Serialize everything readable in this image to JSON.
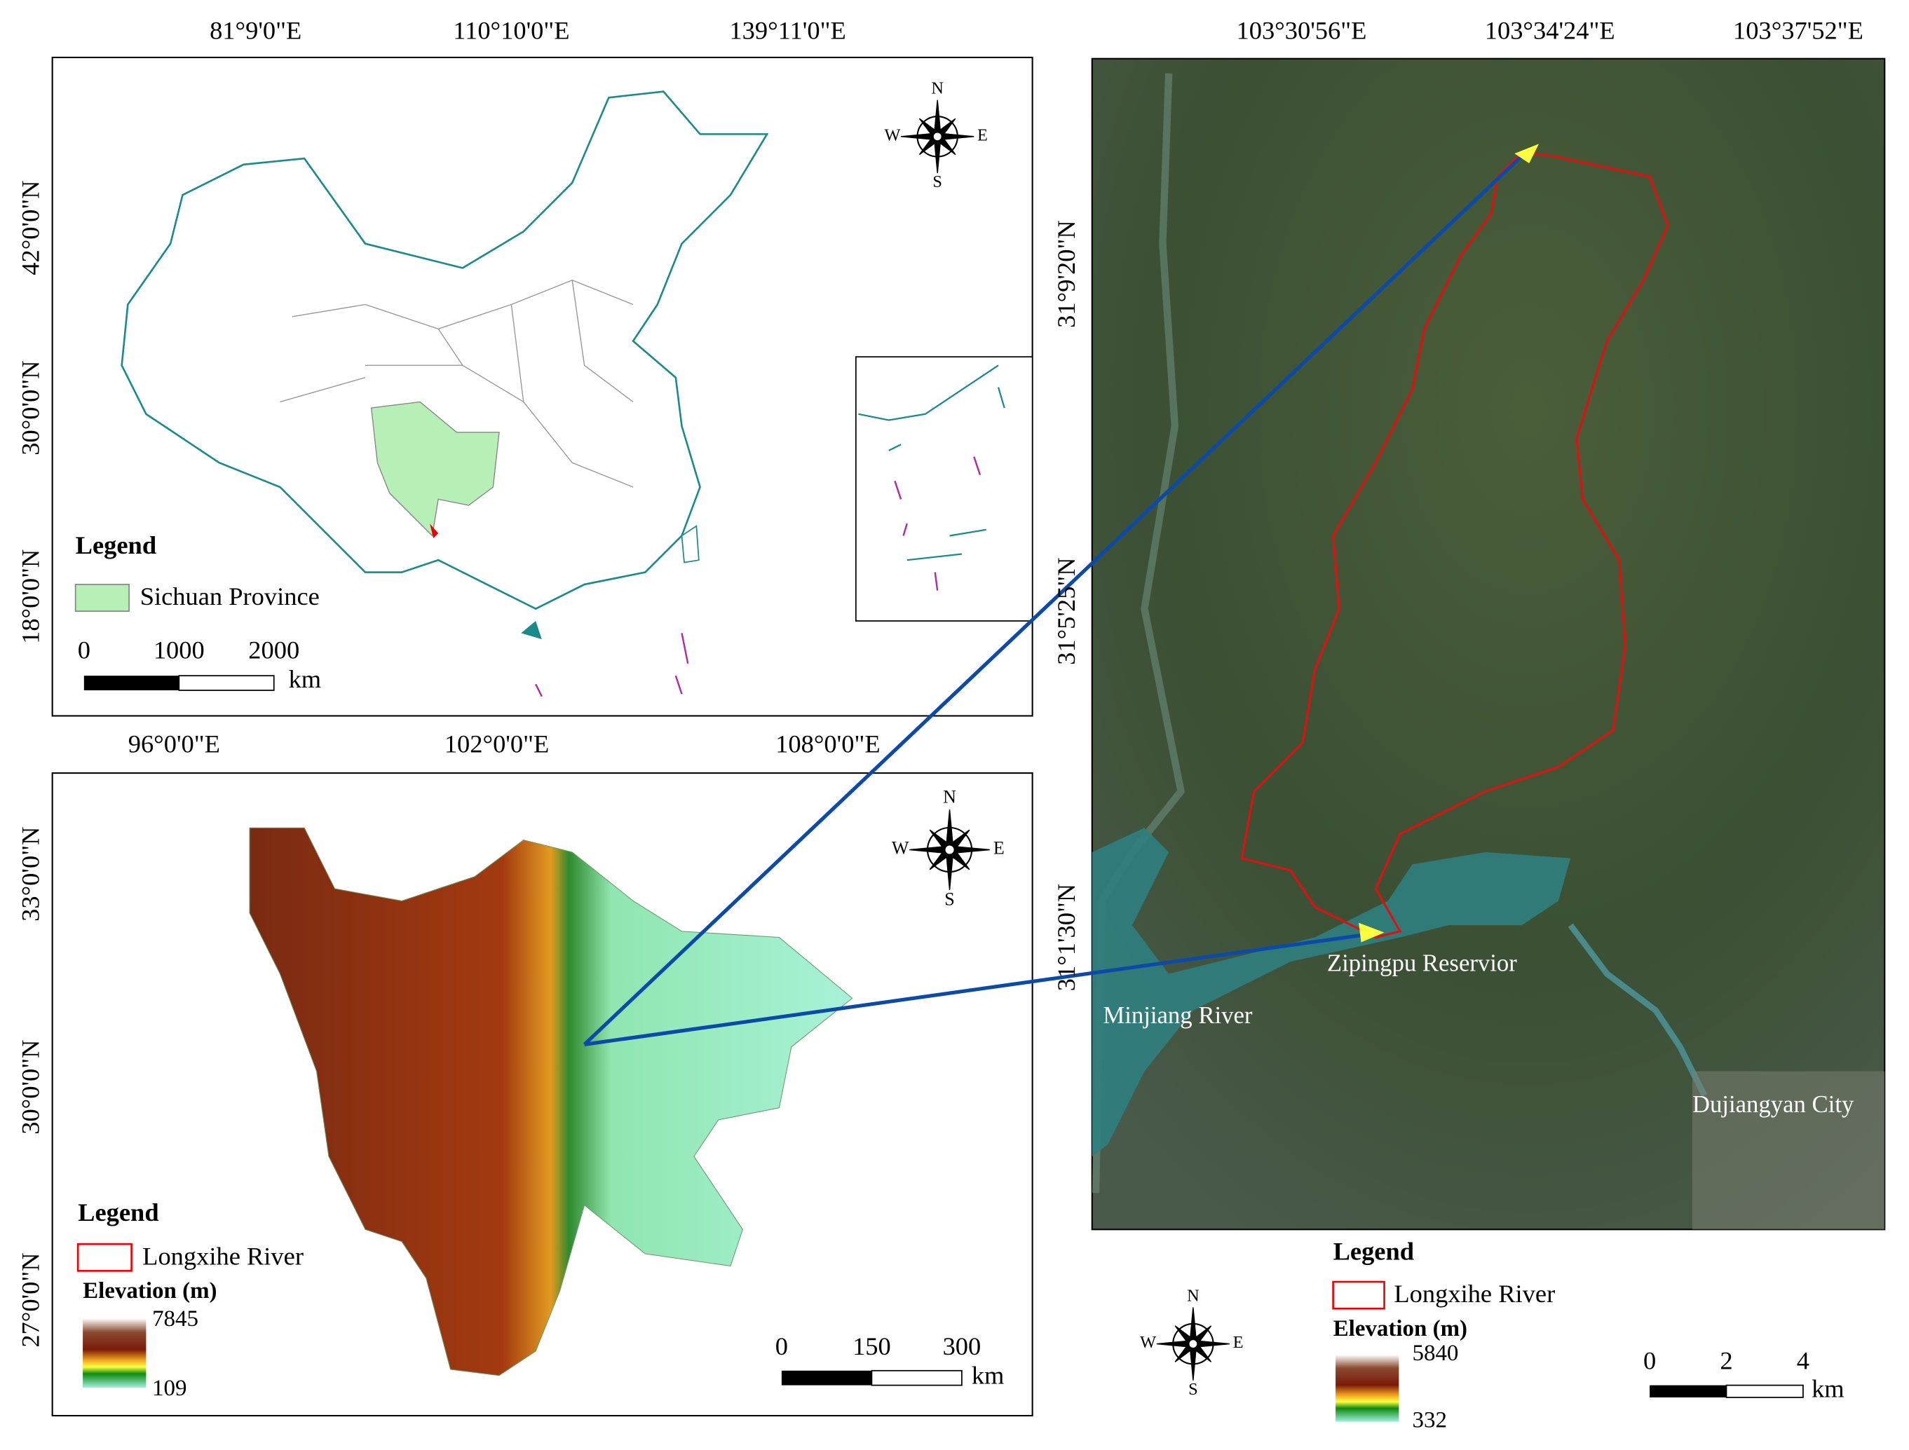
{
  "china_map": {
    "lon_labels": [
      "81°9'0\"E",
      "110°10'0\"E",
      "139°11'0\"E"
    ],
    "lat_labels": [
      "42°0'0\"N",
      "30°0'0\"N",
      "18°0'0\"N"
    ],
    "compass": {
      "n": "N",
      "e": "E",
      "s": "S",
      "w": "W"
    },
    "legend": {
      "title": "Legend",
      "items": [
        "Sichuan Province"
      ]
    },
    "scale": {
      "ticks": [
        0,
        1000,
        2000
      ],
      "unit": "km"
    }
  },
  "sichuan_map": {
    "lon_labels": [
      "96°0'0\"E",
      "102°0'0\"E",
      "108°0'0\"E"
    ],
    "lat_labels": [
      "33°0'0\"N",
      "30°0'0\"N",
      "27°0'0\"N"
    ],
    "compass": {
      "n": "N",
      "e": "E",
      "s": "S",
      "w": "W"
    },
    "legend": {
      "title": "Legend",
      "items": [
        "Longxihe River"
      ],
      "elevation_title": "Elevation (m)",
      "elevation_max": 7845,
      "elevation_min": 109
    },
    "scale": {
      "ticks": [
        0,
        150,
        300
      ],
      "unit": "km"
    }
  },
  "study_area": {
    "lon_labels": [
      "103°30'56\"E",
      "103°34'24\"E",
      "103°37'52\"E"
    ],
    "lat_labels": [
      "31°9'20\"N",
      "31°5'25\"N",
      "31°1'30\"N"
    ],
    "places": [
      "Zipingpu Reservior",
      "Minjiang River",
      "Dujiangyan City"
    ],
    "compass": {
      "n": "N",
      "e": "E",
      "s": "S",
      "w": "W"
    },
    "legend": {
      "title": "Legend",
      "items": [
        "Longxihe River"
      ],
      "elevation_title": "Elevation (m)",
      "elevation_max": 5840,
      "elevation_min": 332
    },
    "scale": {
      "ticks": [
        0,
        2,
        4
      ],
      "unit": "km"
    }
  }
}
